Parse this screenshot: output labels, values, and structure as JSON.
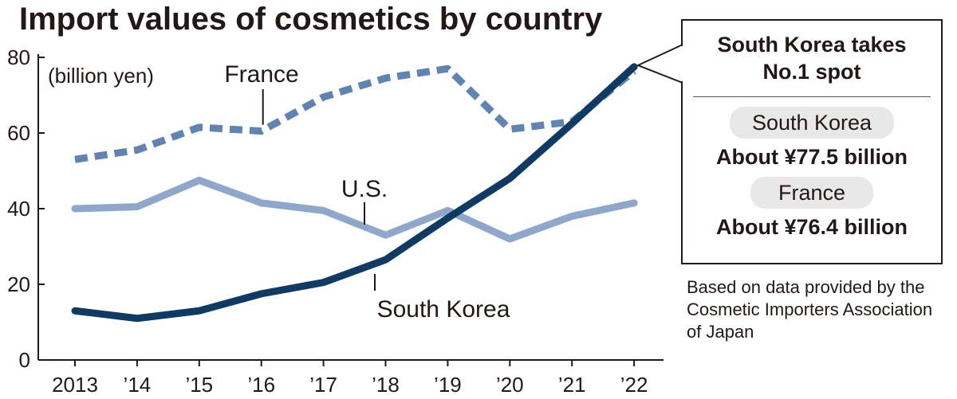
{
  "chart_data": {
    "type": "line",
    "title": "Import values of cosmetics by country",
    "unit_label": "(billion yen)",
    "categories": [
      "2013",
      "’14",
      "’15",
      "’16",
      "’17",
      "’18",
      "’19",
      "’20",
      "’21",
      "’22"
    ],
    "ylim": [
      0,
      80
    ],
    "yticks": [
      0,
      20,
      40,
      60,
      80
    ],
    "series": [
      {
        "name": "France",
        "color": "#5f84b3",
        "style": "dashed",
        "values": [
          53,
          55.5,
          61.5,
          60.5,
          69.5,
          74.5,
          77,
          61,
          63,
          76.4
        ]
      },
      {
        "name": "U.S.",
        "color": "#8ea8cb",
        "style": "solid",
        "values": [
          40,
          40.5,
          47.5,
          41.5,
          39.5,
          33,
          39.5,
          32,
          38,
          41.5
        ]
      },
      {
        "name": "South Korea",
        "color": "#0e3a63",
        "style": "solid",
        "values": [
          13,
          11,
          13,
          17.5,
          20.5,
          26.5,
          37.5,
          48,
          62.5,
          77.5
        ]
      }
    ]
  },
  "callout": {
    "headline_line1": "South Korea takes",
    "headline_line2": "No.1 spot",
    "korea_label": "South Korea",
    "korea_value": "About ¥77.5 billion",
    "france_label": "France",
    "france_value": "About ¥76.4 billion"
  },
  "source": "Based on data provided by the Cosmetic Importers Association of Japan"
}
